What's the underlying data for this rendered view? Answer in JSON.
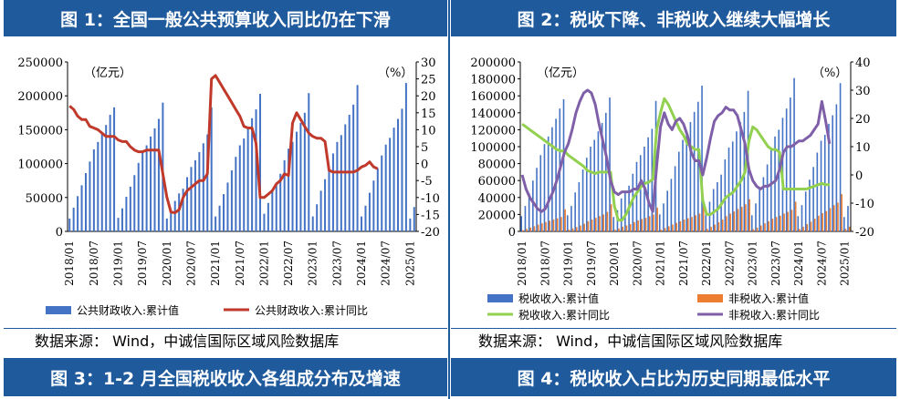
{
  "headers": {
    "fig1": "图 1：全国一般公共预算收入同比仍在下滑",
    "fig2": "图 2：税收下降、非税收入继续大幅增长",
    "fig3": "图 3：1-2 月全国税收收入各组成分布及增速",
    "fig4": "图 4：税收收入占比为历史同期最低水平"
  },
  "sources": {
    "left": "数据来源： Wind，中诚信国际区域风险数据库",
    "right": "数据来源： Wind，中诚信国际区域风险数据库"
  },
  "colors": {
    "header_bg": "#1f5a9c",
    "bar_blue": "#4472c4",
    "line_red": "#c0392b",
    "bar_orange": "#ed7d31",
    "line_green": "#92d050",
    "line_purple": "#7f5fa8"
  },
  "chart_data": [
    {
      "type": "bar",
      "title": "",
      "y_left_unit": "（亿元）",
      "y_right_unit": "（%）",
      "ylim_left": [
        0,
        250000
      ],
      "yticks_left": [
        0,
        50000,
        100000,
        150000,
        200000,
        250000
      ],
      "ylim_right": [
        -20,
        30
      ],
      "yticks_right": [
        -20,
        -15,
        -10,
        -5,
        0,
        5,
        10,
        15,
        20,
        25,
        30
      ],
      "x_ticks": [
        "2018/01",
        "2018/07",
        "2019/01",
        "2019/07",
        "2020/01",
        "2020/07",
        "2021/01",
        "2021/07",
        "2022/01",
        "2022/07",
        "2023/01",
        "2023/07",
        "2024/01",
        "2024/07",
        "2025/01"
      ],
      "series": [
        {
          "name": "公共财政收入:累计值",
          "type": "bar",
          "axis": "left",
          "values": [
            19000,
            35000,
            52000,
            68000,
            86000,
            103000,
            121000,
            132000,
            145000,
            157000,
            172000,
            183000,
            20000,
            34000,
            51000,
            66000,
            83000,
            101000,
            117000,
            127000,
            140000,
            152000,
            166000,
            190000,
            19000,
            28000,
            45000,
            56000,
            63000,
            80000,
            95000,
            105000,
            117000,
            130000,
            143000,
            183000,
            22000,
            38000,
            55000,
            72000,
            90000,
            110000,
            127000,
            137000,
            152000,
            167000,
            180000,
            203000,
            26000,
            42000,
            60000,
            72000,
            85000,
            105000,
            122000,
            132000,
            147000,
            160000,
            175000,
            204000,
            22000,
            40000,
            60000,
            77000,
            95000,
            115000,
            132000,
            142000,
            158000,
            172000,
            187000,
            216000,
            22000,
            38000,
            57000,
            75000,
            93000,
            112000,
            128000,
            138000,
            153000,
            166000,
            181000,
            219000,
            19000,
            36000
          ]
        },
        {
          "name": "公共财政收入:累计同比",
          "type": "line",
          "axis": "right",
          "values": [
            17,
            16,
            14,
            13,
            13,
            11,
            10.5,
            10,
            9,
            8,
            8,
            8,
            7,
            6.5,
            6.5,
            5,
            4,
            3.5,
            3.5,
            4,
            4,
            4,
            4,
            -3,
            -9.9,
            -14.3,
            -14.5,
            -13.6,
            -10,
            -8,
            -7,
            -6,
            -5,
            -5,
            -3,
            25,
            26,
            24,
            22,
            20,
            18,
            16,
            14,
            11,
            10.5,
            10.5,
            6,
            -10,
            -10,
            -9,
            -8,
            -6,
            -5,
            -3,
            -3.5,
            12,
            15,
            13,
            11,
            9,
            8,
            7.5,
            7.5,
            6.5,
            -2,
            -2.5,
            -2.5,
            -2.5,
            -2.5,
            -2.5,
            -2.5,
            -2,
            -1,
            -0.5,
            0.5,
            -1,
            -1.5
          ]
        }
      ]
    },
    {
      "type": "bar",
      "title": "",
      "y_left_unit": "（亿元）",
      "y_right_unit": "（%）",
      "ylim_left": [
        0,
        200000
      ],
      "yticks_left": [
        0,
        20000,
        40000,
        60000,
        80000,
        100000,
        120000,
        140000,
        160000,
        180000,
        200000
      ],
      "ylim_right": [
        -20,
        40
      ],
      "yticks_right": [
        -20,
        -10,
        0,
        10,
        20,
        30,
        40
      ],
      "x_ticks": [
        "2018/01",
        "2018/07",
        "2019/01",
        "2019/07",
        "2020/01",
        "2020/07",
        "2021/01",
        "2021/07",
        "2022/01",
        "2022/07",
        "2023/01",
        "2023/07",
        "2024/01",
        "2024/07",
        "2025/01"
      ],
      "series": [
        {
          "name": "税收收入:累计值",
          "type": "bar",
          "axis": "left",
          "values": [
            18000,
            30000,
            45000,
            60000,
            75000,
            90000,
            103000,
            112000,
            123000,
            133000,
            145000,
            156000,
            19000,
            30000,
            46000,
            58000,
            73000,
            87000,
            100000,
            108000,
            118000,
            128000,
            140000,
            158000,
            17000,
            25000,
            39000,
            48000,
            54000,
            68000,
            82000,
            90000,
            100000,
            111000,
            121000,
            154000,
            20000,
            33000,
            48000,
            62000,
            77000,
            94000,
            108000,
            116000,
            129000,
            141000,
            153000,
            172000,
            22000,
            35000,
            50000,
            58000,
            67000,
            85000,
            99000,
            106000,
            118000,
            129000,
            141000,
            166000,
            19000,
            33000,
            50000,
            64000,
            79000,
            98000,
            112000,
            120000,
            134000,
            145000,
            158000,
            181000,
            18000,
            31000,
            47000,
            61000,
            76000,
            93000,
            107000,
            114000,
            127000,
            137000,
            150000,
            175000,
            17000,
            30000
          ]
        },
        {
          "name": "非税收入:累计值",
          "type": "bar",
          "axis": "left",
          "values": [
            1500,
            3000,
            4500,
            6000,
            8000,
            9500,
            11000,
            12500,
            14000,
            15500,
            17000,
            26000,
            2000,
            3500,
            5000,
            7000,
            9000,
            12000,
            14000,
            16000,
            18000,
            20000,
            23000,
            32000,
            2000,
            3500,
            5500,
            7000,
            8500,
            11000,
            13000,
            14500,
            16000,
            18000,
            20000,
            28000,
            2000,
            4000,
            6000,
            8000,
            10000,
            12000,
            14000,
            15500,
            17000,
            19000,
            21000,
            31000,
            3000,
            5500,
            8000,
            11000,
            14000,
            18000,
            21000,
            23500,
            26500,
            29000,
            32000,
            38000,
            2500,
            4500,
            7000,
            9500,
            12000,
            15000,
            17000,
            18500,
            21000,
            23000,
            25500,
            35000,
            3000,
            5500,
            8500,
            11500,
            15000,
            18500,
            21500,
            24000,
            27500,
            31000,
            34000,
            44000,
            3000,
            5500
          ]
        },
        {
          "name": "税收收入:累计同比",
          "type": "line",
          "axis": "right",
          "values": [
            18,
            17,
            16,
            15,
            14,
            13,
            12,
            11,
            10,
            9,
            8.5,
            8.5,
            7,
            6,
            5,
            4,
            3,
            1.5,
            1,
            0.5,
            1,
            1,
            1,
            1,
            -11,
            -16,
            -16,
            -14,
            -11,
            -8,
            -6,
            -4,
            -3,
            -2.5,
            -1.5,
            16,
            22,
            27,
            25,
            22,
            19,
            16,
            14,
            11,
            10,
            9,
            9,
            -9,
            -14,
            -14,
            -13,
            -12,
            -10,
            -8,
            -7,
            -6,
            -4,
            -2,
            1,
            12,
            17,
            16,
            14,
            12,
            10,
            9,
            9,
            8,
            -5,
            -5,
            -5,
            -5,
            -5,
            -5,
            -5,
            -4.5,
            -4,
            -3.5,
            -3,
            -3.5,
            -3.5
          ]
        },
        {
          "name": "非税收入:累计同比",
          "type": "line",
          "axis": "right",
          "values": [
            0,
            -5,
            -8,
            -10,
            -12,
            -13,
            -12,
            -9,
            -6,
            -2,
            3,
            8,
            11,
            16,
            22,
            26,
            29,
            30,
            29,
            25,
            18,
            12,
            6,
            -2,
            -6,
            -7,
            -6,
            -6,
            -6,
            -5,
            -5,
            -2,
            -5,
            -10,
            -13,
            3,
            17,
            22,
            18,
            16,
            19,
            20,
            18,
            14,
            8,
            5,
            5,
            0,
            6,
            13,
            19,
            21,
            22,
            24,
            23,
            23,
            21,
            16,
            11,
            2,
            -2,
            -4,
            -5,
            -4,
            -4,
            -3,
            -2,
            2,
            8,
            10,
            10,
            11,
            12,
            12,
            13,
            14,
            16,
            18,
            26,
            19,
            11
          ]
        }
      ]
    }
  ]
}
